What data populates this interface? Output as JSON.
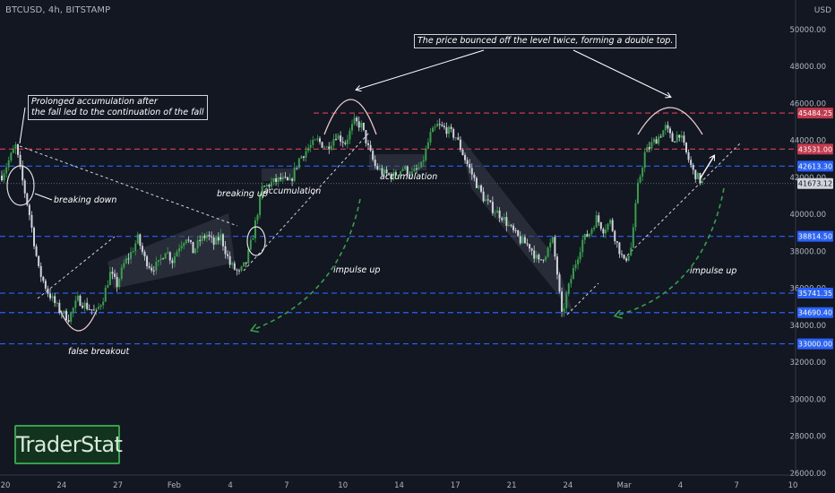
{
  "header": {
    "symbol": "BTCUSD, 4h, BITSTAMP"
  },
  "brand": {
    "label": "TraderStat"
  },
  "colors": {
    "background": "#131722",
    "candle_up": "#36a04a",
    "candle_down": "#d1d4dc",
    "level_red": "#c43b4d",
    "level_blue": "#2962ff",
    "channel_fill": "#3a3e4a"
  },
  "annotations": {
    "accumulation_after_fall": [
      "Prolonged accumulation after",
      "the fall led to the continuation of the fall"
    ],
    "double_top": "The price bounced off the level twice, forming a double top.",
    "breaking_down": "breaking down",
    "breaking_up": "breaking up",
    "false_breakout": "false breakout",
    "accumulation_1": "accumulation",
    "accumulation_2": "accumulation",
    "impulse_up_1": "impulse up",
    "impulse_up_2": "impulse up"
  },
  "chart_data": {
    "type": "candlestick",
    "title": "",
    "y_axis": {
      "label": "USD",
      "ticks": [
        26000,
        28000,
        30000,
        32000,
        34000,
        36000,
        38000,
        40000,
        42000,
        44000,
        46000,
        48000,
        50000
      ],
      "range": [
        25900,
        51600
      ],
      "position": "right"
    },
    "x_axis": {
      "ticks": [
        "20",
        "24",
        "27",
        "Feb",
        "4",
        "7",
        "10",
        "14",
        "17",
        "21",
        "24",
        "Mar",
        "4",
        "7",
        "10"
      ]
    },
    "current_price": 41673.12,
    "levels": [
      {
        "price": 45484.25,
        "label": "45484.25",
        "color": "red"
      },
      {
        "price": 43531.0,
        "label": "43531.00",
        "color": "red"
      },
      {
        "price": 42613.3,
        "label": "42613.30",
        "color": "blue"
      },
      {
        "price": 38814.5,
        "label": "38814.50",
        "color": "blue"
      },
      {
        "price": 35741.35,
        "label": "35741.35",
        "color": "blue"
      },
      {
        "price": 34690.4,
        "label": "34690.40",
        "color": "blue"
      },
      {
        "price": 33000.0,
        "label": "33000.00",
        "color": "blue"
      }
    ],
    "price_path": [
      [
        0,
        42100
      ],
      [
        3,
        42900
      ],
      [
        6,
        43700
      ],
      [
        9,
        41800
      ],
      [
        12,
        40000
      ],
      [
        16,
        37000
      ],
      [
        20,
        35800
      ],
      [
        25,
        34800
      ],
      [
        29,
        34400
      ],
      [
        33,
        35400
      ],
      [
        37,
        35000
      ],
      [
        41,
        34700
      ],
      [
        44,
        35500
      ],
      [
        47,
        36800
      ],
      [
        50,
        36200
      ],
      [
        53,
        37300
      ],
      [
        56,
        37900
      ],
      [
        59,
        38700
      ],
      [
        62,
        37600
      ],
      [
        65,
        37100
      ],
      [
        68,
        37300
      ],
      [
        71,
        38100
      ],
      [
        74,
        37500
      ],
      [
        77,
        38300
      ],
      [
        80,
        38800
      ],
      [
        83,
        38000
      ],
      [
        86,
        38600
      ],
      [
        89,
        38900
      ],
      [
        92,
        38400
      ],
      [
        95,
        38800
      ],
      [
        99,
        37300
      ],
      [
        103,
        36800
      ],
      [
        106,
        37400
      ],
      [
        109,
        38900
      ],
      [
        113,
        41400
      ],
      [
        117,
        41700
      ],
      [
        121,
        41900
      ],
      [
        125,
        41700
      ],
      [
        129,
        43000
      ],
      [
        133,
        43600
      ],
      [
        137,
        44000
      ],
      [
        141,
        43600
      ],
      [
        145,
        44300
      ],
      [
        149,
        43900
      ],
      [
        153,
        45000
      ],
      [
        156,
        44800
      ],
      [
        159,
        43600
      ],
      [
        162,
        42600
      ],
      [
        166,
        42200
      ],
      [
        170,
        42100
      ],
      [
        174,
        42500
      ],
      [
        178,
        42200
      ],
      [
        182,
        42600
      ],
      [
        186,
        44300
      ],
      [
        189,
        44800
      ],
      [
        193,
        44600
      ],
      [
        197,
        44200
      ],
      [
        201,
        43000
      ],
      [
        205,
        41900
      ],
      [
        209,
        40900
      ],
      [
        213,
        40300
      ],
      [
        217,
        39900
      ],
      [
        221,
        39200
      ],
      [
        225,
        38600
      ],
      [
        229,
        38300
      ],
      [
        233,
        37400
      ],
      [
        236,
        37900
      ],
      [
        239,
        38600
      ],
      [
        241,
        36800
      ],
      [
        243,
        34500
      ],
      [
        245,
        35600
      ],
      [
        248,
        37000
      ],
      [
        252,
        38600
      ],
      [
        255,
        39000
      ],
      [
        258,
        39800
      ],
      [
        261,
        39200
      ],
      [
        264,
        39600
      ],
      [
        267,
        38400
      ],
      [
        270,
        37400
      ],
      [
        273,
        38200
      ],
      [
        276,
        41500
      ],
      [
        279,
        43300
      ],
      [
        282,
        43800
      ],
      [
        285,
        44200
      ],
      [
        288,
        44700
      ],
      [
        291,
        44000
      ],
      [
        294,
        44400
      ],
      [
        297,
        43300
      ],
      [
        300,
        42300
      ],
      [
        304,
        41700
      ]
    ]
  }
}
